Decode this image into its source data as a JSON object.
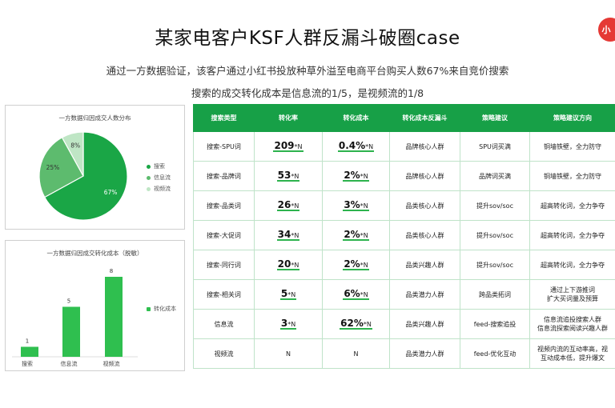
{
  "badge": "小",
  "title": "某家电客户KSF人群反漏斗破圈case",
  "subtitle_line1": "通过一方数据验证，该客户通过小红书投放种草外溢至电商平台购买人数67%来自竞价搜索",
  "subtitle_line2": "搜索的成交转化成本是信息流的1/5，是视频流的1/8",
  "chart_data": [
    {
      "type": "pie",
      "title": "一方数据归因成交人数分布",
      "categories": [
        "搜索",
        "信息流",
        "视频流"
      ],
      "values": [
        67,
        25,
        8
      ],
      "labels": [
        "67%",
        "25%",
        "8%"
      ],
      "colors": [
        "#1aa646",
        "#5dbb6e",
        "#bfe6c5"
      ],
      "legend": "right"
    },
    {
      "type": "bar",
      "title": "一方数据归因成交转化成本（脱敏）",
      "categories": [
        "搜索",
        "信息流",
        "视频流"
      ],
      "values": [
        1,
        5,
        8
      ],
      "series": [
        {
          "name": "转化成本",
          "values": [
            1,
            5,
            8
          ]
        }
      ],
      "ylim": [
        0,
        8
      ],
      "color": "#2fbf4f",
      "legend": "right"
    }
  ],
  "table": {
    "headers": [
      "搜索类型",
      "转化率",
      "转化成本",
      "转化成本反漏斗",
      "策略建议",
      "策略建议方向"
    ],
    "rows": [
      {
        "type": "搜索-SPU词",
        "rate_num": "209",
        "rate_unit": "*N",
        "cost_num": "0.4%",
        "cost_unit": "*N",
        "funnel": "品牌核心人群",
        "strategy": "SPU词买满",
        "direction": "铜墙铁壁，全力防守"
      },
      {
        "type": "搜索-品牌词",
        "rate_num": "53",
        "rate_unit": "*N",
        "cost_num": "2%",
        "cost_unit": "*N",
        "funnel": "品牌核心人群",
        "strategy": "品牌词买满",
        "direction": "铜墙铁壁，全力防守"
      },
      {
        "type": "搜索-品类词",
        "rate_num": "26",
        "rate_unit": "*N",
        "cost_num": "3%",
        "cost_unit": "*N",
        "funnel": "品类核心人群",
        "strategy": "提升sov/soc",
        "direction": "超高转化词，全力争夺"
      },
      {
        "type": "搜索-大促词",
        "rate_num": "34",
        "rate_unit": "*N",
        "cost_num": "2%",
        "cost_unit": "*N",
        "funnel": "品类核心人群",
        "strategy": "提升sov/soc",
        "direction": "超高转化词，全力争夺"
      },
      {
        "type": "搜索-同行词",
        "rate_num": "20",
        "rate_unit": "*N",
        "cost_num": "2%",
        "cost_unit": "*N",
        "funnel": "品类兴趣人群",
        "strategy": "提升sov/soc",
        "direction": "超高转化词，全力争夺"
      },
      {
        "type": "搜索-相关词",
        "rate_num": "5",
        "rate_unit": "*N",
        "cost_num": "6%",
        "cost_unit": "*N",
        "funnel": "品类潜力人群",
        "strategy": "跨品类拓词",
        "direction": "通过上下游推词\n扩大买词量及预算"
      },
      {
        "type": "信息流",
        "rate_num": "3",
        "rate_unit": "*N",
        "cost_num": "62%",
        "cost_unit": "*N",
        "funnel": "品类兴趣人群",
        "strategy": "feed-搜索追投",
        "direction": "信息流追投搜索人群\n信息流探索阅读兴趣人群"
      },
      {
        "type": "视频流",
        "rate_num": "",
        "rate_unit": "N",
        "cost_num": "",
        "cost_unit": "N",
        "funnel": "品类潜力人群",
        "strategy": "feed-优化互动",
        "direction": "视频内流的互动率高，视\n互动成本低，提升爆文"
      }
    ]
  }
}
